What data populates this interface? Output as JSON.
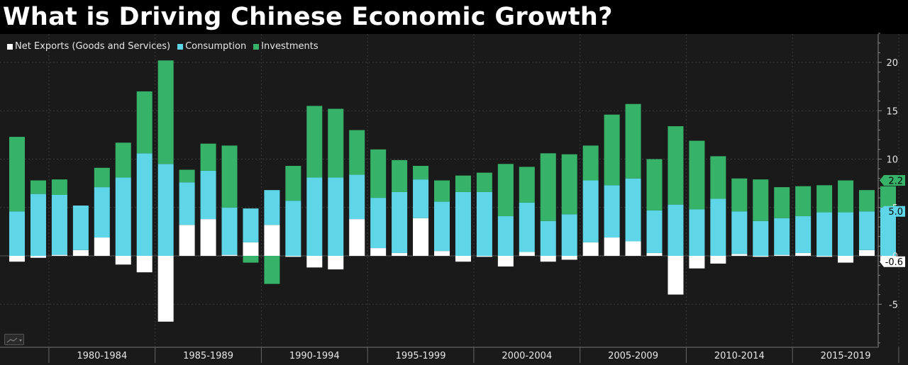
{
  "title": "What is Driving Chinese Economic Growth?",
  "legend": [
    {
      "label": "Net Exports (Goods and Services)",
      "color": "#ffffff"
    },
    {
      "label": "Consumption",
      "color": "#5fd6e8"
    },
    {
      "label": "Investments",
      "color": "#36b368"
    }
  ],
  "chart_data": {
    "type": "bar",
    "stacked": true,
    "title": "What is Driving Chinese Economic Growth?",
    "years": [
      1978,
      1979,
      1980,
      1981,
      1982,
      1983,
      1984,
      1985,
      1986,
      1987,
      1988,
      1989,
      1990,
      1991,
      1992,
      1993,
      1994,
      1995,
      1996,
      1997,
      1998,
      1999,
      2000,
      2001,
      2002,
      2003,
      2004,
      2005,
      2006,
      2007,
      2008,
      2009,
      2010,
      2011,
      2012,
      2013,
      2014,
      2015,
      2016,
      2017,
      2018,
      2019
    ],
    "series": [
      {
        "name": "Net Exports (Goods and Services)",
        "color": "#ffffff",
        "values": [
          -0.6,
          -0.2,
          0.1,
          0.6,
          1.9,
          -0.9,
          -1.7,
          -6.8,
          3.2,
          3.8,
          0.1,
          1.4,
          3.2,
          -0.1,
          -1.2,
          -1.4,
          3.8,
          0.8,
          0.3,
          3.9,
          0.5,
          -0.6,
          -0.1,
          -1.1,
          0.4,
          -0.6,
          -0.4,
          1.4,
          1.9,
          1.5,
          0.3,
          -4.0,
          -1.3,
          -0.8,
          0.2,
          -0.1,
          0.1,
          0.3,
          -0.1,
          -0.7,
          0.6,
          -0.6
        ]
      },
      {
        "name": "Consumption",
        "color": "#5fd6e8",
        "values": [
          4.6,
          6.4,
          6.2,
          4.6,
          5.2,
          8.1,
          10.6,
          9.5,
          4.4,
          5.0,
          4.9,
          3.5,
          3.6,
          5.7,
          8.1,
          8.1,
          4.6,
          5.2,
          6.3,
          4.0,
          5.1,
          6.6,
          6.6,
          4.1,
          5.1,
          3.6,
          4.3,
          6.4,
          5.4,
          6.5,
          4.4,
          5.3,
          4.8,
          5.9,
          4.4,
          3.6,
          3.8,
          3.8,
          4.5,
          4.5,
          4.0,
          5.0
        ]
      },
      {
        "name": "Investments",
        "color": "#36b368",
        "values": [
          7.7,
          1.4,
          1.6,
          0,
          2.0,
          3.6,
          6.4,
          10.7,
          1.3,
          2.8,
          6.4,
          -0.7,
          -2.9,
          3.6,
          7.4,
          7.1,
          4.6,
          5.0,
          3.3,
          1.4,
          2.2,
          1.7,
          2.0,
          5.4,
          3.7,
          7.0,
          6.2,
          3.6,
          7.3,
          7.7,
          5.3,
          8.1,
          7.1,
          4.4,
          3.4,
          4.3,
          3.2,
          3.1,
          2.8,
          3.3,
          2.2,
          2.2
        ]
      }
    ],
    "period_labels": [
      "1980-1984",
      "1985-1989",
      "1990-1994",
      "1995-1999",
      "2000-2004",
      "2005-2009",
      "2010-2014",
      "2015-2019"
    ],
    "y_ticks": [
      -5,
      0,
      5,
      10,
      15,
      20
    ],
    "ylim": [
      -9.5,
      23
    ],
    "y_axis_side": "right",
    "latest_value_tags": [
      {
        "series": "Investments",
        "value": "2.2"
      },
      {
        "series": "Consumption",
        "value": "5.0"
      },
      {
        "series": "Net Exports (Goods and Services)",
        "value": "-0.6"
      }
    ],
    "legend_position": "top-left",
    "grid": true
  }
}
